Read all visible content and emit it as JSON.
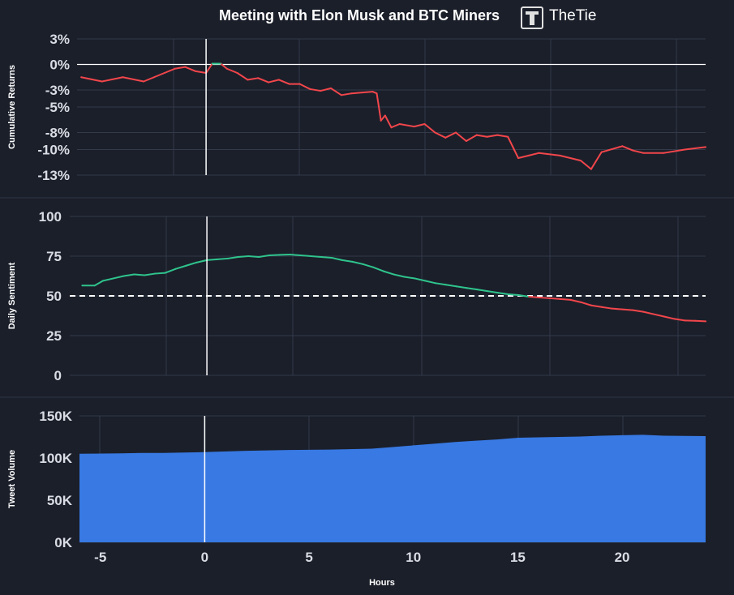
{
  "header": {
    "title": "Meeting with Elon Musk and BTC Miners",
    "brand": "TheTie"
  },
  "colors": {
    "background": "#1b1f2a",
    "grid": "#333a49",
    "positive": "#2fc48d",
    "negative": "#f2464b",
    "volume": "#3879e3",
    "event_line": "#ffffff"
  },
  "chart_data": [
    {
      "type": "line",
      "ylabel": "Cumulative Returns",
      "ylim": [
        -13,
        3
      ],
      "yticks": [
        3,
        0,
        -3,
        -5,
        -8,
        -10,
        -13
      ],
      "ytick_labels": [
        "3%",
        "0%",
        "-3%",
        "-5%",
        "-8%",
        "-10%",
        "-13%"
      ],
      "x": [
        -6,
        -5,
        -4,
        -3,
        -2.5,
        -2,
        -1.5,
        -1,
        -0.5,
        0,
        0.3,
        0.7,
        1,
        1.5,
        2,
        2.5,
        3,
        3.5,
        4,
        4.5,
        5,
        5.5,
        6,
        6.5,
        7,
        7.5,
        8,
        8.2,
        8.4,
        8.6,
        8.9,
        9.3,
        10,
        10.5,
        11,
        11.5,
        12,
        12.5,
        13,
        13.5,
        14,
        14.5,
        14.8,
        15,
        15.5,
        16,
        17,
        18,
        18.5,
        19,
        20,
        20.5,
        21,
        22,
        23,
        24
      ],
      "values": [
        -1.5,
        -2.0,
        -1.5,
        -2.0,
        -1.5,
        -1.0,
        -0.5,
        -0.3,
        -0.8,
        -1.0,
        0.1,
        0.1,
        -0.5,
        -1.0,
        -1.8,
        -1.6,
        -2.1,
        -1.8,
        -2.3,
        -2.3,
        -2.9,
        -3.1,
        -2.8,
        -3.6,
        -3.4,
        -3.3,
        -3.2,
        -3.4,
        -6.6,
        -6.0,
        -7.4,
        -7.0,
        -7.3,
        -7.0,
        -8.0,
        -8.6,
        -8.0,
        -9.0,
        -8.3,
        -8.5,
        -8.3,
        -8.5,
        -10.0,
        -11.0,
        -10.7,
        -10.4,
        -10.7,
        -11.3,
        -12.3,
        -10.3,
        -9.6,
        -10.1,
        -10.4,
        -10.4,
        -10.0,
        -9.7
      ],
      "xlim": [
        -6.2,
        24
      ],
      "series_colors": [
        "#2fc48d",
        "#f2464b"
      ],
      "baseline": 0,
      "event_x": 0
    },
    {
      "type": "line",
      "ylabel": "Daily Sentiment",
      "ylim": [
        0,
        100
      ],
      "yticks": [
        100,
        75,
        50,
        25,
        0
      ],
      "ytick_labels": [
        "100",
        "75",
        "50",
        "25",
        "0"
      ],
      "x": [
        -6,
        -5.4,
        -5,
        -4.5,
        -4,
        -3.5,
        -3,
        -2.5,
        -2,
        -1.5,
        -1,
        -0.5,
        0,
        0.5,
        1,
        1.5,
        2,
        2.5,
        3,
        3.5,
        4,
        4.5,
        5,
        5.5,
        6,
        6.5,
        7,
        7.5,
        8,
        8.5,
        9,
        9.5,
        10,
        10.5,
        11,
        11.5,
        12,
        12.5,
        13,
        13.5,
        14,
        14.5,
        15,
        15.5,
        16,
        16.5,
        17,
        17.5,
        18,
        18.5,
        19,
        19.5,
        20,
        20.5,
        21,
        21.5,
        22,
        22.5,
        23,
        23.5,
        24
      ],
      "values": [
        56.5,
        56.5,
        59.5,
        61,
        62.5,
        63.5,
        63,
        64,
        64.5,
        67,
        69,
        71,
        72.5,
        73,
        73.5,
        74.5,
        75,
        74.5,
        75.5,
        75.8,
        76,
        75.5,
        75,
        74.5,
        74,
        72.5,
        71.5,
        70,
        68,
        65.5,
        63.5,
        62,
        61,
        59.5,
        58,
        57,
        56,
        55,
        54,
        53,
        52,
        51,
        50.5,
        49.5,
        49,
        48.5,
        48,
        47.5,
        46,
        44,
        43,
        42,
        41.5,
        41,
        40,
        38.5,
        37,
        35.5,
        34.5,
        34.3,
        34
      ],
      "xlim": [
        -6.6,
        24
      ],
      "series_colors": [
        "#2fc48d",
        "#f2464b"
      ],
      "baseline": 50,
      "event_x": 0
    },
    {
      "type": "area",
      "ylabel": "Tweet Volume",
      "xlabel": "Hours",
      "ylim": [
        0,
        150000
      ],
      "yticks": [
        150000,
        100000,
        50000,
        0
      ],
      "ytick_labels": [
        "150K",
        "100K",
        "50K",
        "0K"
      ],
      "xticks": [
        -5,
        0,
        5,
        10,
        15,
        20
      ],
      "xtick_labels": [
        "-5",
        "0",
        "5",
        "10",
        "15",
        "20"
      ],
      "x": [
        -6,
        -4,
        -3,
        -2,
        0,
        2,
        4,
        6,
        8,
        9,
        10,
        11,
        12,
        13,
        14,
        15,
        16,
        17,
        18,
        19,
        20,
        21,
        22,
        23,
        24
      ],
      "values": [
        105000,
        105500,
        106000,
        106000,
        107000,
        108500,
        109500,
        110000,
        111000,
        113000,
        115000,
        117000,
        119000,
        120500,
        122000,
        124000,
        124500,
        125000,
        125500,
        126500,
        127000,
        127500,
        126500,
        126200,
        126000
      ],
      "xlim": [
        -6,
        24
      ],
      "event_x": 0
    }
  ]
}
